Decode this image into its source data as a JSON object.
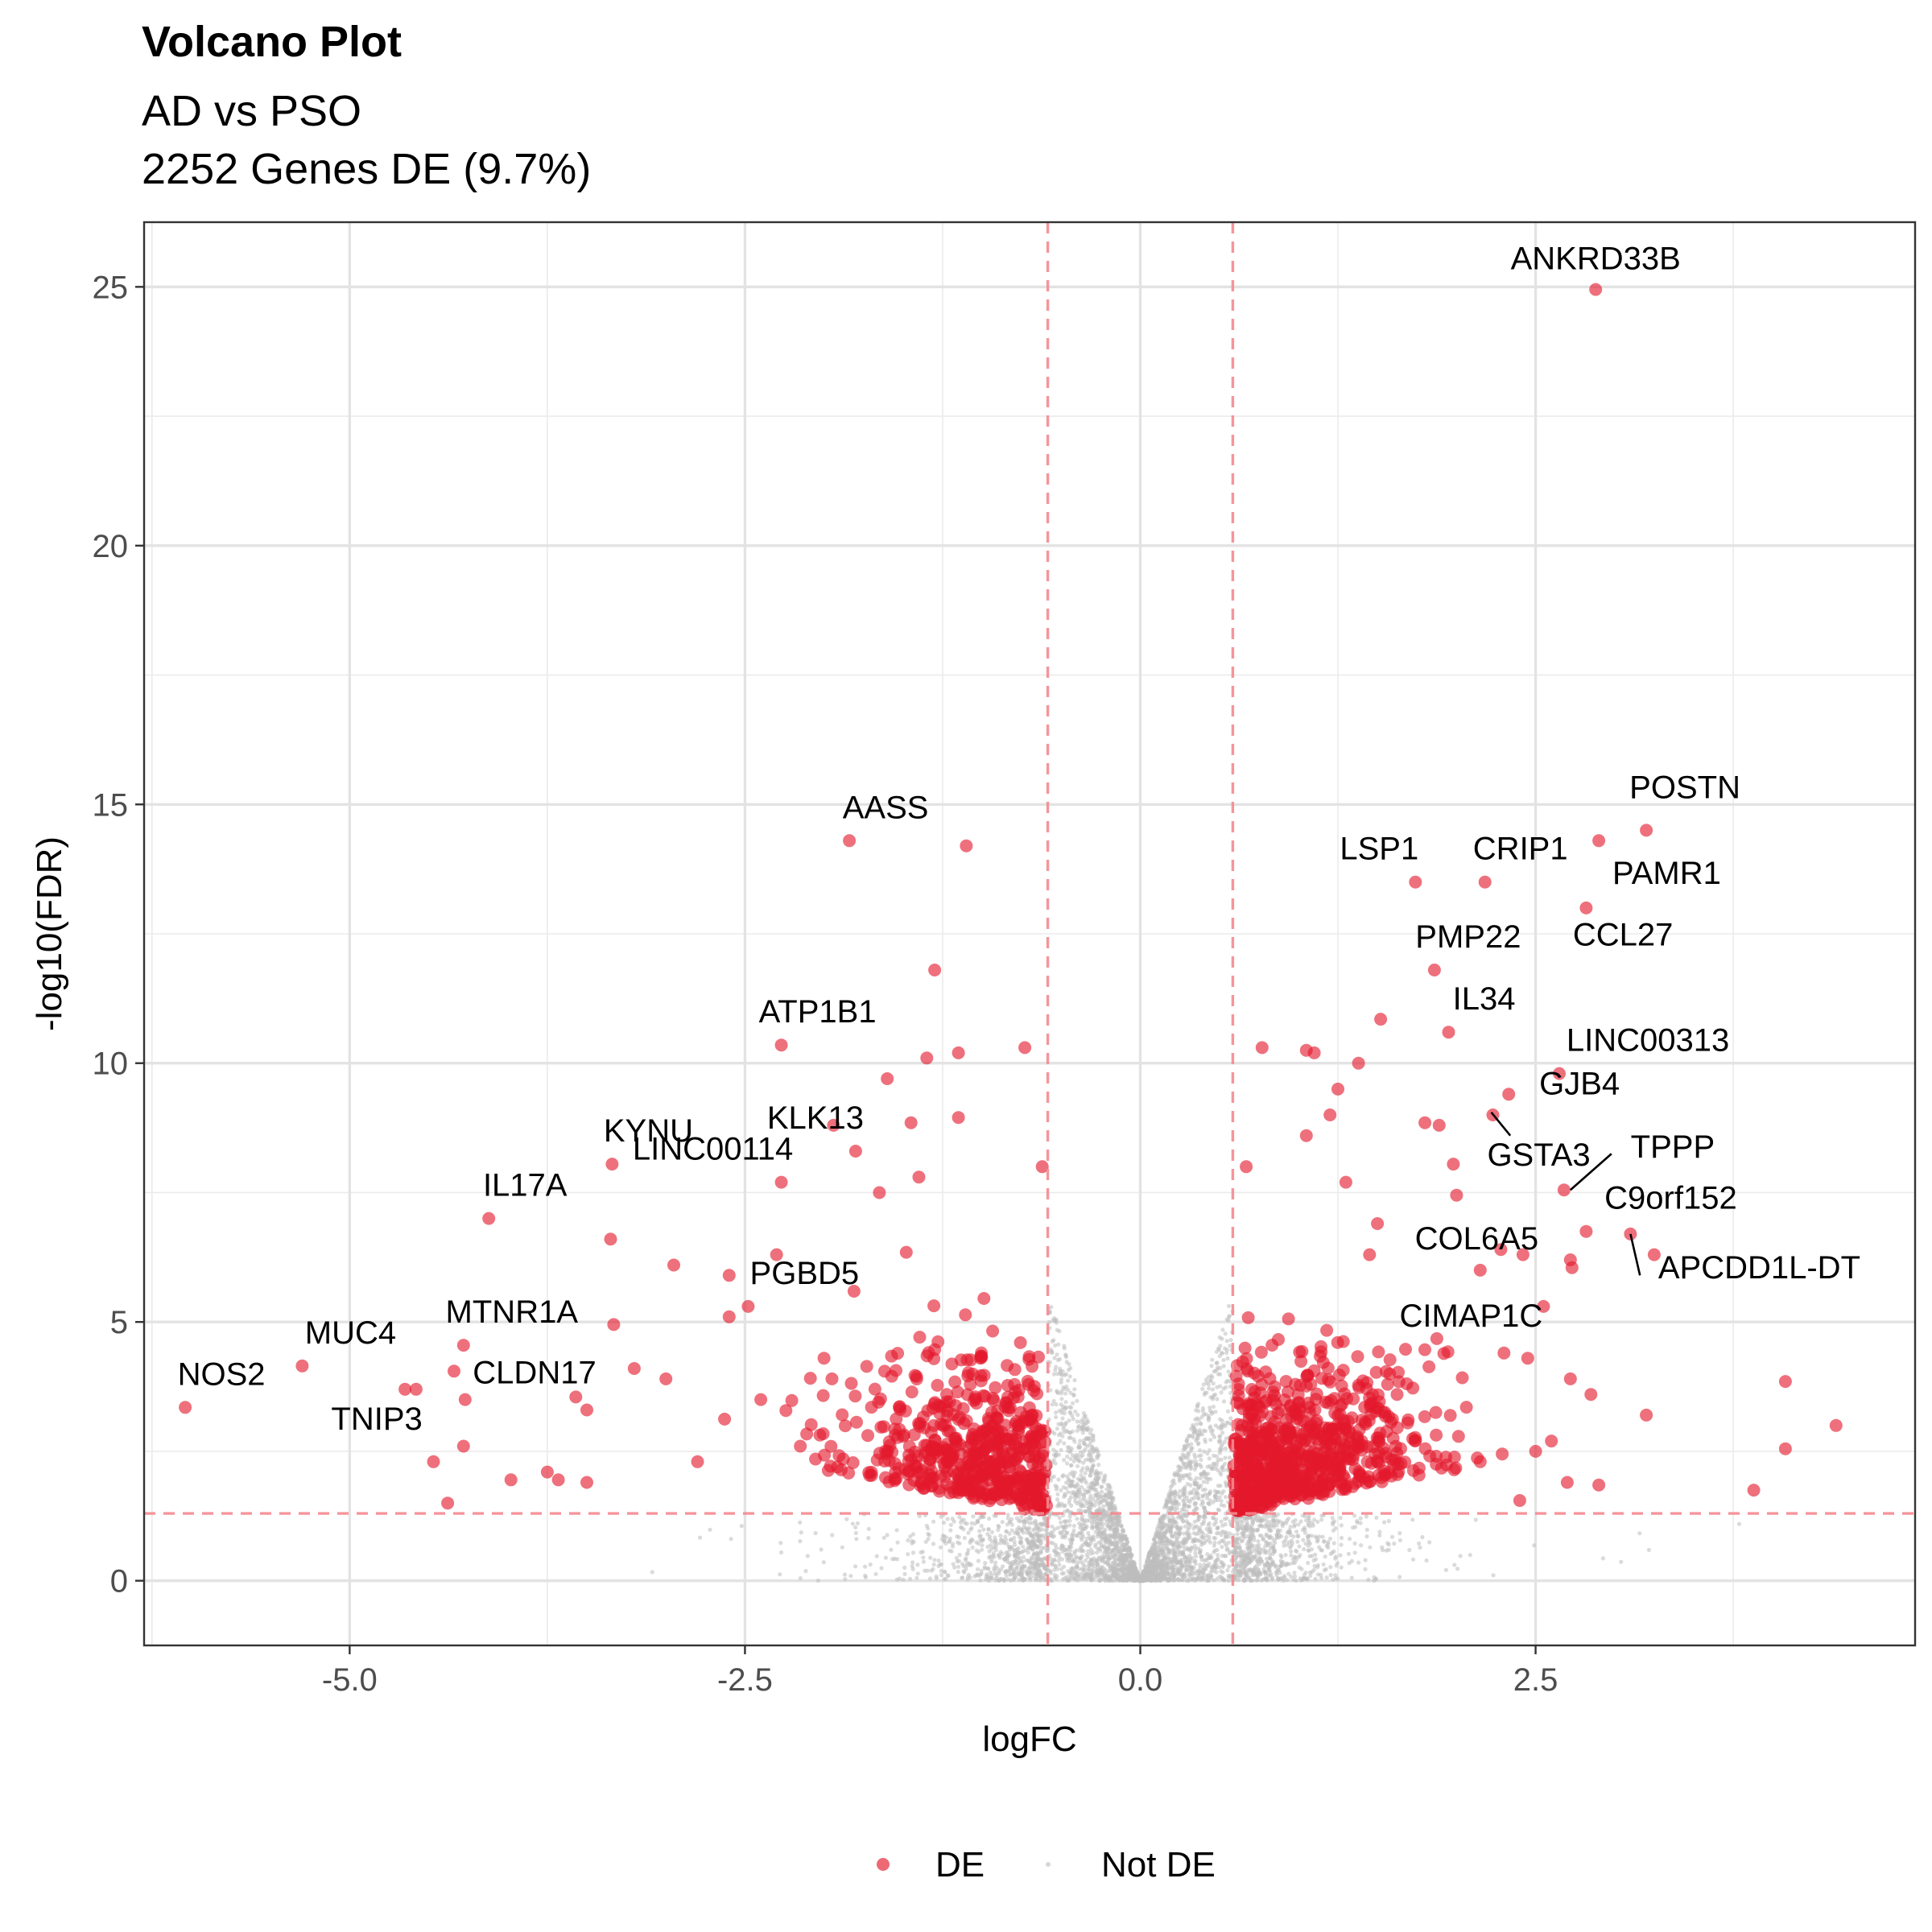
{
  "chart_data": {
    "type": "scatter",
    "title": "Volcano Plot",
    "subtitle_lines": [
      "AD vs PSO",
      "2252 Genes DE (9.7%)"
    ],
    "xlabel": "logFC",
    "ylabel": "-log10(FDR)",
    "xlim": [
      -6.3,
      4.9
    ],
    "ylim": [
      -1.25,
      26.25
    ],
    "x_ticks": [
      -5.0,
      -2.5,
      0.0,
      2.5
    ],
    "x_tick_labels": [
      "-5.0",
      "-2.5",
      "0.0",
      "2.5"
    ],
    "y_ticks": [
      0,
      5,
      10,
      15,
      20,
      25
    ],
    "y_tick_labels": [
      "0",
      "5",
      "10",
      "15",
      "20",
      "25"
    ],
    "grid": true,
    "thresholds": {
      "logFC": [
        -0.585,
        0.585
      ],
      "neg_log10_fdr": 1.3,
      "color": "#f4898f"
    },
    "legend": {
      "position": "bottom",
      "entries": [
        "DE",
        "Not DE"
      ]
    },
    "colors": {
      "DE": "#e3192b",
      "Not DE": "#bdbdbd"
    },
    "series": [
      {
        "name": "DE",
        "labeled_points": [
          {
            "gene": "ANKRD33B",
            "x": 2.88,
            "y": 24.95
          },
          {
            "gene": "POSTN",
            "x": 3.2,
            "y": 14.5
          },
          {
            "gene": "AASS",
            "x": -1.84,
            "y": 14.3
          },
          {
            "gene": "CRIP1",
            "x": 2.18,
            "y": 13.5
          },
          {
            "gene": "LSP1",
            "x": 1.74,
            "y": 13.5
          },
          {
            "gene": "PAMR1",
            "x": 2.82,
            "y": 13.0
          },
          {
            "gene": "PMP22",
            "x": 1.86,
            "y": 11.8
          },
          {
            "gene": "CCL27",
            "x": 2.9,
            "y": 14.3
          },
          {
            "gene": "IL34",
            "x": 1.95,
            "y": 10.6
          },
          {
            "gene": "ATP1B1",
            "x": -2.27,
            "y": 10.35
          },
          {
            "gene": "LINC00313",
            "x": 2.65,
            "y": 9.8
          },
          {
            "gene": "GJB4",
            "x": 2.33,
            "y": 9.4
          },
          {
            "gene": "GSTA3",
            "x": 2.23,
            "y": 9.0
          },
          {
            "gene": "KYNU",
            "x": -3.34,
            "y": 8.05
          },
          {
            "gene": "KLK13",
            "x": -1.8,
            "y": 8.3
          },
          {
            "gene": "TPPP",
            "x": 2.68,
            "y": 7.55
          },
          {
            "gene": "IL17A",
            "x": -4.12,
            "y": 7.0
          },
          {
            "gene": "LINC00114",
            "x": -2.27,
            "y": 7.7
          },
          {
            "gene": "C9orf152",
            "x": 2.82,
            "y": 6.75
          },
          {
            "gene": "COL6A5",
            "x": 2.28,
            "y": 6.4
          },
          {
            "gene": "APCDD1L-DT",
            "x": 3.1,
            "y": 6.7
          },
          {
            "gene": "CIMAP1C",
            "x": 2.55,
            "y": 5.3
          },
          {
            "gene": "PGBD5",
            "x": -2.48,
            "y": 5.3
          },
          {
            "gene": "MTNR1A",
            "x": -4.28,
            "y": 4.55
          },
          {
            "gene": "MUC4",
            "x": -5.3,
            "y": 4.15
          },
          {
            "gene": "CLDN17",
            "x": -4.34,
            "y": 4.05
          },
          {
            "gene": "NOS2",
            "x": -6.04,
            "y": 3.35
          },
          {
            "gene": "TNIP3",
            "x": -4.65,
            "y": 3.7
          }
        ]
      },
      {
        "name": "Not DE"
      }
    ]
  }
}
